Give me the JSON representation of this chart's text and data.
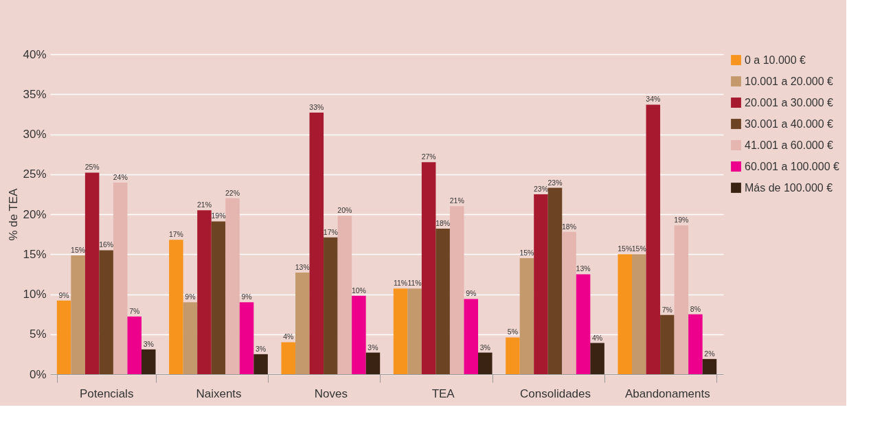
{
  "chart_data": {
    "type": "bar",
    "ylabel": "% de TEA",
    "categories": [
      "Potencials",
      "Naixents",
      "Noves",
      "TEA",
      "Consolidades",
      "Abandonaments"
    ],
    "series": [
      {
        "name": "0 a 10.000 €",
        "color": "#f7941d",
        "values": [
          9.2,
          16.8,
          4.0,
          10.7,
          4.6,
          15.0
        ],
        "value_labels": [
          "9%",
          "17%",
          "4%",
          "11%",
          "5%",
          "15%"
        ]
      },
      {
        "name": "10.001 a 20.000  €",
        "color": "#c49a6c",
        "values": [
          14.85,
          9.0,
          12.7,
          10.7,
          14.5,
          15.0
        ],
        "value_labels": [
          "15%",
          "9%",
          "13%",
          "11%",
          "15%",
          "15%"
        ]
      },
      {
        "name": "20.001 a 30.000 €",
        "color": "#a6192e",
        "values": [
          25.2,
          20.5,
          32.7,
          26.5,
          22.5,
          33.7
        ],
        "value_labels": [
          "25%",
          "21%",
          "33%",
          "27%",
          "23%",
          "34%"
        ]
      },
      {
        "name": "30.001 a 40.000 €",
        "color": "#6d4423",
        "values": [
          15.5,
          19.1,
          17.1,
          18.2,
          23.3,
          7.4
        ],
        "value_labels": [
          "16%",
          "19%",
          "17%",
          "18%",
          "23%",
          "7%"
        ]
      },
      {
        "name": "41.001 a 60.000 €",
        "color": "#e5b5b0",
        "values": [
          23.95,
          22.0,
          19.8,
          21.0,
          17.8,
          18.6
        ],
        "value_labels": [
          "24%",
          "22%",
          "20%",
          "21%",
          "18%",
          "19%"
        ]
      },
      {
        "name": "60.001 a 100.000 €",
        "color": "#ec008c",
        "values": [
          7.2,
          9.0,
          9.8,
          9.4,
          12.5,
          7.5
        ],
        "value_labels": [
          "7%",
          "9%",
          "10%",
          "9%",
          "13%",
          "8%"
        ]
      },
      {
        "name": "Más de 100.000 €",
        "color": "#3b2314",
        "values": [
          3.1,
          2.5,
          2.7,
          2.7,
          3.9,
          1.9
        ],
        "value_labels": [
          "3%",
          "3%",
          "3%",
          "3%",
          "4%",
          "2%"
        ]
      }
    ],
    "ylim": [
      0,
      40
    ],
    "yticks": [
      {
        "value": 0,
        "label": "0%"
      },
      {
        "value": 5,
        "label": "5%"
      },
      {
        "value": 10,
        "label": "10%"
      },
      {
        "value": 15,
        "label": "15%"
      },
      {
        "value": 20,
        "label": "20%"
      },
      {
        "value": 25,
        "label": "25%"
      },
      {
        "value": 30,
        "label": "30%"
      },
      {
        "value": 35,
        "label": "35%"
      },
      {
        "value": 40,
        "label": "40%"
      }
    ],
    "grid": "y",
    "legend": "right"
  }
}
